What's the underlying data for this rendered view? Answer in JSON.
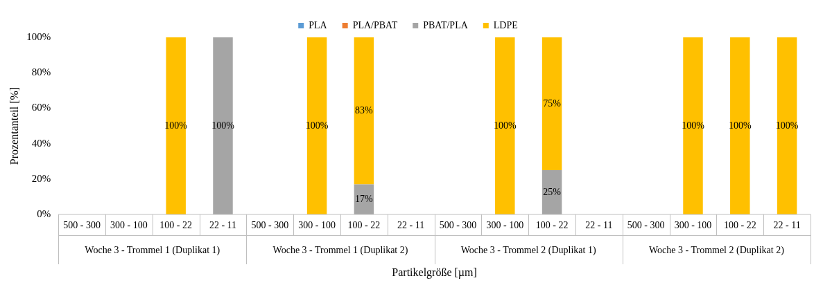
{
  "chart_data": {
    "type": "bar",
    "stacked": true,
    "xlabel": "Partikelgröße [µm]",
    "ylabel": "Prozentanteil [%]",
    "categories": [
      "500 - 300",
      "300 - 100",
      "100 - 22",
      "22 - 11",
      "500 - 300",
      "300 - 100",
      "100 - 22",
      "22 - 11",
      "500 - 300",
      "300 - 100",
      "100 - 22",
      "22 - 11",
      "500 - 300",
      "300 - 100",
      "100 - 22",
      "22 - 11"
    ],
    "annotations": [
      "Woche 3 - Trommel 1 (Duplikat 1)",
      "Woche 3 - Trommel 1 (Duplikat 2)",
      "Woche 3 - Trommel 2 (Duplikat 1)",
      "Woche 3 - Trommel 2 (Duplikat 2)"
    ],
    "series": [
      {
        "name": "PLA",
        "color": "#5b9bd5",
        "values": [
          null,
          null,
          null,
          null,
          null,
          null,
          null,
          null,
          null,
          null,
          null,
          null,
          null,
          null,
          null,
          null
        ]
      },
      {
        "name": "PLA/PBAT",
        "color": "#ed7d31",
        "values": [
          null,
          null,
          null,
          null,
          null,
          null,
          null,
          null,
          null,
          null,
          null,
          null,
          null,
          null,
          null,
          null
        ]
      },
      {
        "name": "PBAT/PLA",
        "color": "#a5a5a5",
        "values": [
          null,
          null,
          null,
          100,
          null,
          null,
          17,
          null,
          null,
          null,
          25,
          null,
          null,
          null,
          null,
          null
        ],
        "value_labels": [
          null,
          null,
          null,
          "100%",
          null,
          null,
          "17%",
          null,
          null,
          null,
          "25%",
          null,
          null,
          null,
          null,
          null
        ]
      },
      {
        "name": "LDPE",
        "color": "#ffc000",
        "values": [
          null,
          null,
          100,
          null,
          null,
          100,
          83,
          null,
          null,
          100,
          75,
          null,
          null,
          100,
          100,
          100
        ],
        "value_labels": [
          null,
          null,
          "100%",
          null,
          null,
          "100%",
          "83%",
          null,
          null,
          "100%",
          "75%",
          null,
          null,
          "100%",
          "100%",
          "100%"
        ]
      }
    ],
    "ylim": [
      0,
      100
    ],
    "yticks": [
      {
        "value": 0,
        "label": "0%"
      },
      {
        "value": 20,
        "label": "20%"
      },
      {
        "value": 40,
        "label": "40%"
      },
      {
        "value": 60,
        "label": "60%"
      },
      {
        "value": 80,
        "label": "80%"
      },
      {
        "value": 100,
        "label": "100%"
      }
    ],
    "grid": false,
    "legend": "top"
  }
}
